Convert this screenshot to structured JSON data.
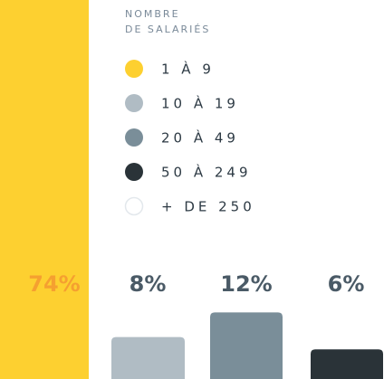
{
  "chart_data": {
    "type": "bar",
    "title": [
      "NOMBRE",
      "DE SALARIÉS"
    ],
    "categories": [
      "1 À 9",
      "10 À 19",
      "20 À 49",
      "50 À 249",
      "+ DE 250"
    ],
    "colors": [
      "#fdd030",
      "#b0bcc4",
      "#7a8e99",
      "#2a3338",
      "#ffffff"
    ],
    "values": [
      74,
      8,
      12,
      6,
      null
    ],
    "value_labels": [
      "74%",
      "8%",
      "12%",
      "6%",
      null
    ],
    "label_colors": [
      "#f5a030",
      "#4a5a66",
      "#4a5a66",
      "#4a5a66",
      "#4a5a66"
    ]
  }
}
